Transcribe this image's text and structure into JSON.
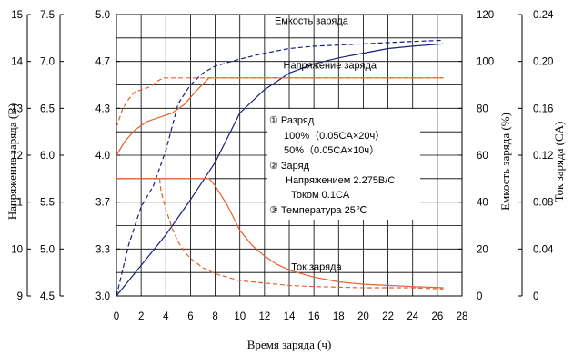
{
  "chart_data": {
    "type": "line",
    "xlabel": "Время заряда (ч)",
    "x_ticks": [
      "0",
      "2",
      "4",
      "6",
      "8",
      "10",
      "12",
      "14",
      "16",
      "18",
      "20",
      "22",
      "24",
      "26",
      "28"
    ],
    "xlim": [
      0,
      28
    ],
    "grid": true,
    "y_axes": [
      {
        "id": "voltage12",
        "label": "Напряжение заряда (В)",
        "ticks": [
          "9",
          "10",
          "11",
          "12",
          "13",
          "14",
          "15"
        ],
        "ylim": [
          9,
          15
        ]
      },
      {
        "id": "voltage6",
        "label": "",
        "ticks": [
          "4.5",
          "5.0",
          "5.5",
          "6.0",
          "6.5",
          "7.0",
          "7.5"
        ],
        "ylim": [
          4.5,
          7.5
        ]
      },
      {
        "id": "voltage2",
        "label": "",
        "ticks": [
          "3.0",
          "3.3",
          "3.7",
          "4.0",
          "4.3",
          "4.7",
          "5.0"
        ],
        "ylim": [
          3.0,
          5.0
        ]
      },
      {
        "id": "capacity",
        "label": "Емкость заряда (%)",
        "ticks": [
          "0",
          "20",
          "40",
          "60",
          "80",
          "100",
          "120"
        ],
        "ylim": [
          0,
          120
        ]
      },
      {
        "id": "current",
        "label": "Ток заряда (CA)",
        "ticks": [
          "0",
          "0.04",
          "0.08",
          "0.12",
          "0.16",
          "0.20",
          "0.24"
        ],
        "ylim": [
          0,
          0.24
        ]
      }
    ],
    "series": [
      {
        "name": "Емкость заряда",
        "axis": "capacity",
        "style": "solid",
        "color": "#1a1f7a",
        "x": [
          0,
          2,
          4,
          6,
          8,
          10,
          12,
          14,
          16,
          18,
          20,
          22,
          24,
          26.5
        ],
        "y": [
          0,
          13,
          26,
          41,
          57,
          78,
          88,
          95,
          99,
          101.5,
          103.5,
          105.5,
          106.5,
          107.5
        ]
      },
      {
        "name": "Емкость заряда",
        "axis": "capacity",
        "style": "dashed",
        "color": "#1a1f7a",
        "x": [
          0,
          1,
          2,
          3,
          4,
          5,
          6,
          7,
          8,
          10,
          12,
          14,
          16,
          18,
          20,
          22,
          24,
          26.5
        ],
        "y": [
          0,
          22,
          38,
          47,
          62,
          82,
          90,
          95,
          98,
          101,
          103.5,
          105.5,
          106.5,
          107,
          107.5,
          108,
          108.5,
          109
        ]
      },
      {
        "name": "Напряжение заряда",
        "axis": "voltage2",
        "style": "solid",
        "color": "#e8602a",
        "x": [
          0,
          0.7,
          1.5,
          2.5,
          3.5,
          4.5,
          5.5,
          6.5,
          7.5,
          7.5,
          10,
          15,
          20,
          26.5
        ],
        "y": [
          4.0,
          4.1,
          4.18,
          4.24,
          4.27,
          4.3,
          4.36,
          4.46,
          4.55,
          4.55,
          4.55,
          4.55,
          4.55,
          4.55
        ]
      },
      {
        "name": "Напряжение заряда",
        "axis": "voltage2",
        "style": "dashed",
        "color": "#e8602a",
        "x": [
          0,
          0.5,
          1,
          1.5,
          2.2,
          2.8,
          3.4,
          3.8,
          5,
          10,
          15,
          20,
          26.5
        ],
        "y": [
          4.2,
          4.33,
          4.4,
          4.45,
          4.47,
          4.49,
          4.53,
          4.55,
          4.55,
          4.55,
          4.55,
          4.55,
          4.55
        ]
      },
      {
        "name": "Ток заряда",
        "axis": "current",
        "style": "solid",
        "color": "#e8602a",
        "x": [
          0,
          3,
          6,
          7.5,
          8,
          9,
          10,
          11,
          12,
          13,
          14,
          16,
          18,
          20,
          22,
          24,
          26.5
        ],
        "y": [
          0.1,
          0.1,
          0.1,
          0.1,
          0.094,
          0.077,
          0.056,
          0.043,
          0.034,
          0.027,
          0.022,
          0.016,
          0.012,
          0.01,
          0.009,
          0.008,
          0.007
        ]
      },
      {
        "name": "Ток заряда",
        "axis": "current",
        "style": "dashed",
        "color": "#e8602a",
        "x": [
          0,
          3.5,
          3.6,
          4,
          4.5,
          5,
          5.5,
          6,
          7,
          8,
          10,
          12,
          14,
          16,
          20,
          24,
          26.5
        ],
        "y": [
          0.1,
          0.1,
          0.09,
          0.074,
          0.058,
          0.046,
          0.038,
          0.032,
          0.024,
          0.019,
          0.013,
          0.011,
          0.009,
          0.008,
          0.007,
          0.007,
          0.006
        ]
      }
    ],
    "annotations": [
      {
        "text": "Емкость заряда",
        "x": 15.8,
        "axis": "capacity",
        "y": 116
      },
      {
        "text": "Напряжение заряда",
        "x": 17.3,
        "axis": "capacity",
        "y": 97
      },
      {
        "text": "Ток заряда",
        "x": 16.2,
        "axis": "current",
        "y": 0.022
      }
    ],
    "legend_lines": [
      "①   Разряд",
      "100%（0.05CA×20ч）",
      "50%（0.05CA×10ч）",
      "②  Заряд",
      "Напряжением 2.275B/C",
      "Током 0.1CA",
      "③  Температура 25℃"
    ]
  }
}
